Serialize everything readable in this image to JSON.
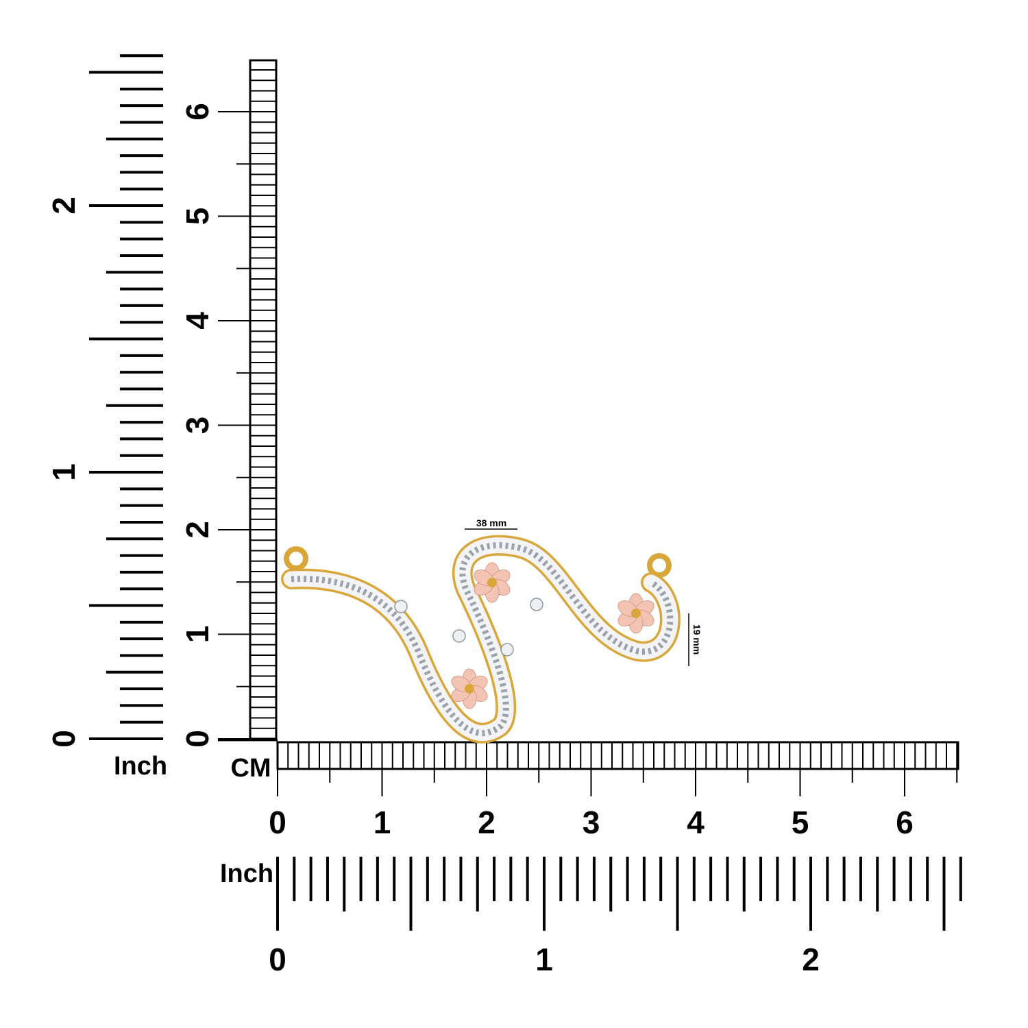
{
  "left_inch_ruler": {
    "unit": "Inch",
    "labels": [
      "0",
      "1",
      "2"
    ]
  },
  "cm_vertical_ruler": {
    "labels": [
      "0",
      "1",
      "2",
      "3",
      "4",
      "5",
      "6"
    ]
  },
  "cm_horizontal_ruler": {
    "unit": "CM",
    "labels": [
      "0",
      "1",
      "2",
      "3",
      "4",
      "5",
      "6"
    ]
  },
  "bottom_inch_ruler": {
    "unit": "Inch",
    "labels": [
      "0",
      "1",
      "2"
    ]
  },
  "dimensions": {
    "width": "38 mm",
    "height": "19 mm"
  }
}
